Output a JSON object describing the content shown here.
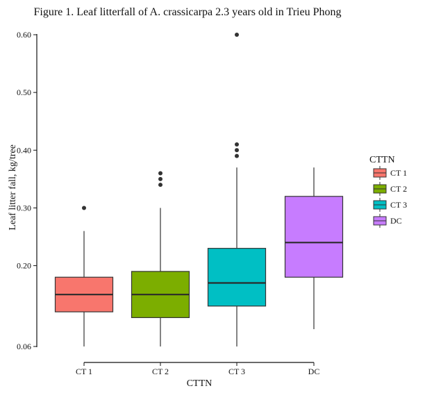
{
  "chart_data": {
    "type": "boxplot",
    "title": "Figure 1. Leaf litterfall of A. crassicarpa 2.3 years old in Trieu Phong",
    "xlabel": "CTTN",
    "ylabel": "Leaf litter fall, kg/tree",
    "ylim": [
      0.06,
      0.6
    ],
    "yticks": [
      "0.06",
      "0.20",
      "0.30",
      "0.40",
      "0.50",
      "0.60"
    ],
    "ytick_values": [
      0.06,
      0.2,
      0.3,
      0.4,
      0.5,
      0.6
    ],
    "categories": [
      "CT 1",
      "CT 2",
      "CT 3",
      "DC"
    ],
    "grid": false,
    "legend": {
      "title": "CTTN",
      "position": "right",
      "entries": [
        "CT 1",
        "CT 2",
        "CT 3",
        "DC"
      ]
    },
    "series": [
      {
        "category": "CT 1",
        "color": "#F8766D",
        "whisker_low": 0.06,
        "q1": 0.12,
        "median": 0.15,
        "q3": 0.18,
        "whisker_high": 0.26,
        "outliers": [
          0.3
        ]
      },
      {
        "category": "CT 2",
        "color": "#7CAE00",
        "whisker_low": 0.06,
        "q1": 0.11,
        "median": 0.15,
        "q3": 0.19,
        "whisker_high": 0.3,
        "outliers": [
          0.34,
          0.35,
          0.36
        ]
      },
      {
        "category": "CT 3",
        "color": "#00BFC4",
        "whisker_low": 0.06,
        "q1": 0.13,
        "median": 0.17,
        "q3": 0.23,
        "whisker_high": 0.37,
        "outliers": [
          0.39,
          0.4,
          0.41,
          0.6
        ]
      },
      {
        "category": "DC",
        "color": "#C77CFF",
        "whisker_low": 0.09,
        "q1": 0.18,
        "median": 0.24,
        "q3": 0.32,
        "whisker_high": 0.37,
        "outliers": []
      }
    ]
  }
}
